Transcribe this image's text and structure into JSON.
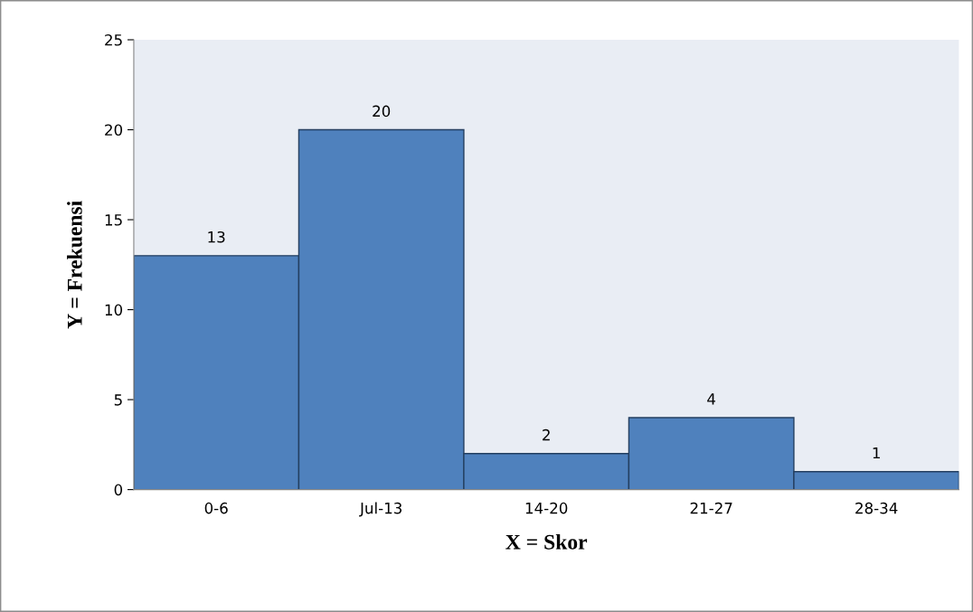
{
  "chart_data": {
    "type": "bar",
    "categories": [
      "0-6",
      "Jul-13",
      "14-20",
      "21-27",
      "28-34"
    ],
    "values": [
      13,
      20,
      2,
      4,
      1
    ],
    "color": "#4f81bd",
    "xlabel": "X = Skor",
    "ylabel": "Y = Frekuensi",
    "ylim": [
      0,
      25
    ],
    "yticks": [
      0,
      5,
      10,
      15,
      20,
      25
    ],
    "data_labels": true,
    "grid": false,
    "legend": false
  }
}
